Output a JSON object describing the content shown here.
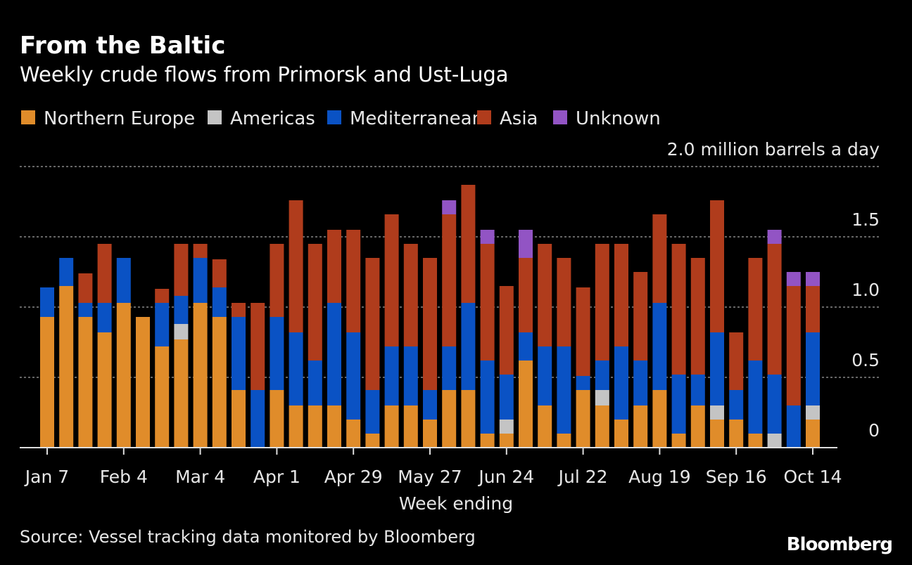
{
  "chart_data": {
    "type": "bar",
    "stacked": true,
    "title": "From the Baltic",
    "subtitle": "Weekly crude flows from Primorsk and Ust-Luga",
    "xlabel": "Week ending",
    "ylabel": "million barrels a day",
    "y_unit_label": "2.0 million barrels a day",
    "ylim": [
      0,
      2.0
    ],
    "yticks": [
      0,
      0.5,
      1.0,
      1.5,
      2.0
    ],
    "ytick_labels": [
      "0",
      "0.5",
      "1.0",
      "1.5",
      "2.0 million barrels a day"
    ],
    "grid": true,
    "legend_position": "top-left",
    "xtick_labels": [
      {
        "index": 0,
        "label": "Jan 7"
      },
      {
        "index": 4,
        "label": "Feb 4"
      },
      {
        "index": 8,
        "label": "Mar 4"
      },
      {
        "index": 12,
        "label": "Apr 1"
      },
      {
        "index": 16,
        "label": "Apr 29"
      },
      {
        "index": 20,
        "label": "May 27"
      },
      {
        "index": 24,
        "label": "Jun 24"
      },
      {
        "index": 28,
        "label": "Jul 22"
      },
      {
        "index": 32,
        "label": "Aug 19"
      },
      {
        "index": 36,
        "label": "Sep 16"
      },
      {
        "index": 40,
        "label": "Oct 14"
      }
    ],
    "series": [
      {
        "name": "Northern Europe",
        "color": "#e08c2a",
        "values": [
          0.93,
          1.15,
          0.93,
          0.82,
          1.03,
          0.93,
          0.72,
          0.77,
          1.03,
          0.93,
          0.41,
          0,
          0.41,
          0.3,
          0.3,
          0.3,
          0.2,
          0.1,
          0.3,
          0.3,
          0.2,
          0.41,
          0.41,
          0.1,
          0.1,
          0.62,
          0.3,
          0.1,
          0.41,
          0.3,
          0.2,
          0.3,
          0.41,
          0.1,
          0.3,
          0.2,
          0.2,
          0.1,
          0,
          0,
          0.2
        ]
      },
      {
        "name": "Americas",
        "color": "#c4c4c4",
        "values": [
          0,
          0,
          0,
          0,
          0,
          0,
          0,
          0.11,
          0,
          0,
          0,
          0,
          0,
          0,
          0,
          0,
          0,
          0,
          0,
          0,
          0,
          0,
          0,
          0,
          0.1,
          0,
          0,
          0,
          0,
          0.11,
          0,
          0,
          0,
          0,
          0,
          0.1,
          0,
          0,
          0.1,
          0,
          0.1
        ]
      },
      {
        "name": "Mediterranean",
        "color": "#0a52c4",
        "values": [
          0.21,
          0.2,
          0.1,
          0.21,
          0.32,
          0,
          0.31,
          0.2,
          0.32,
          0.21,
          0.52,
          0.41,
          0.52,
          0.52,
          0.32,
          0.73,
          0.62,
          0.31,
          0.42,
          0.42,
          0.21,
          0.31,
          0.62,
          0.52,
          0.32,
          0.2,
          0.42,
          0.62,
          0.1,
          0.21,
          0.52,
          0.32,
          0.62,
          0.42,
          0.22,
          0.52,
          0.21,
          0.52,
          0.42,
          0.3,
          0.52
        ]
      },
      {
        "name": "Asia",
        "color": "#b03c1c",
        "values": [
          0,
          0,
          0.21,
          0.42,
          0,
          0,
          0.1,
          0.37,
          0.1,
          0.2,
          0.1,
          0.62,
          0.52,
          0.94,
          0.83,
          0.52,
          0.73,
          0.94,
          0.94,
          0.73,
          0.94,
          0.94,
          0.84,
          0.83,
          0.63,
          0.53,
          0.73,
          0.63,
          0.63,
          0.83,
          0.73,
          0.63,
          0.63,
          0.93,
          0.83,
          0.94,
          0.41,
          0.73,
          0.93,
          0.85,
          0.33
        ]
      },
      {
        "name": "Unknown",
        "color": "#9254c4",
        "values": [
          0,
          0,
          0,
          0,
          0,
          0,
          0,
          0,
          0,
          0,
          0,
          0,
          0,
          0,
          0,
          0,
          0,
          0,
          0,
          0,
          0,
          0.1,
          0,
          0.1,
          0,
          0.2,
          0,
          0,
          0,
          0,
          0,
          0,
          0,
          0,
          0,
          0,
          0,
          0,
          0.1,
          0.1,
          0.1
        ]
      }
    ],
    "source": "Source: Vessel tracking data monitored by Bloomberg",
    "logo": "Bloomberg"
  }
}
